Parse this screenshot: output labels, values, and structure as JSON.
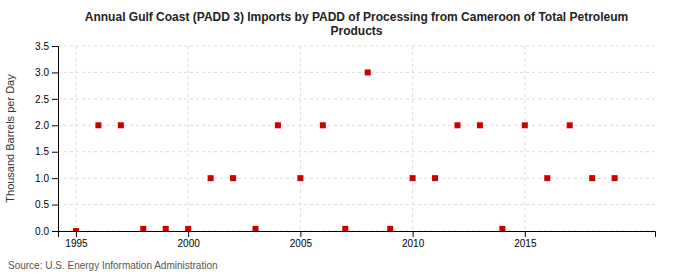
{
  "chart_data": {
    "type": "scatter",
    "title": "Annual Gulf Coast (PADD 3) Imports by PADD of Processing from Cameroon of Total Petroleum\nProducts",
    "ylabel": "Thousand Barrels per Day",
    "source": "Source: U.S. Energy Information Administration",
    "x": [
      1995,
      1996,
      1997,
      1998,
      1999,
      2000,
      2001,
      2002,
      2003,
      2004,
      2005,
      2006,
      2007,
      2008,
      2009,
      2010,
      2011,
      2012,
      2013,
      2014,
      2015,
      2016,
      2017,
      2018,
      2019
    ],
    "values": [
      0.0,
      2.0,
      2.0,
      0.04,
      0.04,
      0.04,
      1.0,
      1.0,
      0.04,
      2.0,
      1.0,
      2.0,
      0.04,
      3.0,
      0.04,
      1.0,
      1.0,
      2.0,
      2.0,
      0.04,
      2.0,
      1.0,
      2.0,
      1.0,
      1.0
    ],
    "color": "#cc0000",
    "marker": "square",
    "xlim": [
      1994.2,
      2020.8
    ],
    "xticks": [
      1995,
      2000,
      2005,
      2010,
      2015
    ],
    "ylim": [
      0,
      3.5
    ],
    "yticks": [
      {
        "value": 0.0,
        "label": "0.0"
      },
      0.5,
      {
        "value": 1.0,
        "label": "1.0"
      },
      1.5,
      {
        "value": 2.0,
        "label": "2.0"
      },
      2.5,
      {
        "value": 3.0,
        "label": "3.0"
      },
      3.5
    ],
    "grid": true
  }
}
